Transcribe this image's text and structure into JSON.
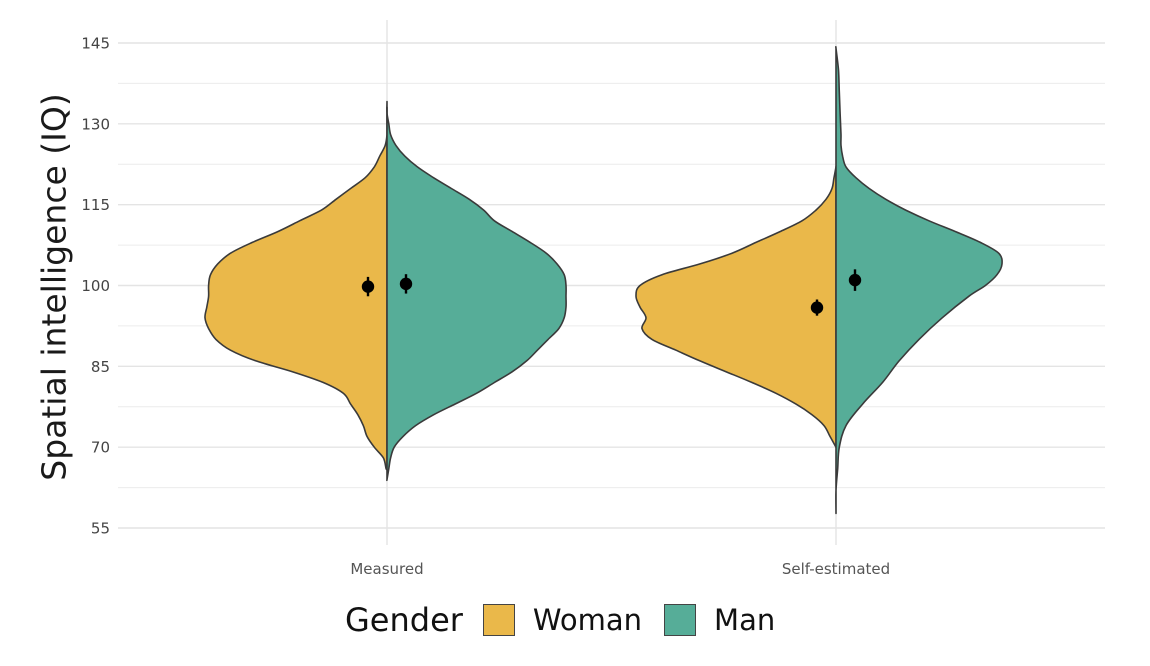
{
  "chart_data": {
    "type": "violin",
    "title": "",
    "xlabel": "",
    "ylabel": "Spatial intelligence (IQ)",
    "ylim": [
      53,
      148
    ],
    "yticks": [
      55,
      70,
      85,
      100,
      115,
      130,
      145
    ],
    "categories": [
      "Measured",
      "Self-estimated"
    ],
    "grid": true,
    "legend": {
      "title": "Gender",
      "position": "bottom"
    },
    "series": [
      {
        "name": "Woman",
        "color": "#eab84a",
        "side": "left",
        "means": [
          {
            "category": "Measured",
            "value": 99.8,
            "ci": [
              98.0,
              101.6
            ]
          },
          {
            "category": "Self-estimated",
            "value": 95.9,
            "ci": [
              94.4,
              97.4
            ]
          }
        ],
        "density": [
          {
            "category": "Measured",
            "iq": [
              66,
              68,
              70,
              72,
              74,
              76,
              78,
              80,
              82,
              84,
              86,
              88,
              90,
              92,
              94,
              96,
              98,
              100,
              102,
              104,
              106,
              108,
              110,
              112,
              114,
              116,
              118,
              120,
              122,
              124,
              126,
              128,
              130,
              132,
              133
            ],
            "density": [
              0.005,
              0.02,
              0.07,
              0.11,
              0.13,
              0.16,
              0.2,
              0.24,
              0.35,
              0.52,
              0.72,
              0.86,
              0.94,
              0.98,
              1.0,
              0.99,
              0.98,
              0.98,
              0.97,
              0.93,
              0.86,
              0.74,
              0.6,
              0.48,
              0.36,
              0.28,
              0.2,
              0.12,
              0.07,
              0.04,
              0.01,
              0.0,
              0.0,
              0.0,
              0.0
            ]
          },
          {
            "category": "Self-estimated",
            "iq": [
              70,
              72,
              74,
              76,
              78,
              80,
              82,
              84,
              86,
              88,
              90,
              92,
              94,
              96,
              98,
              100,
              102,
              104,
              106,
              108,
              110,
              112,
              114,
              116,
              118,
              120,
              122
            ],
            "density": [
              0.0,
              0.03,
              0.06,
              0.12,
              0.2,
              0.3,
              0.42,
              0.55,
              0.68,
              0.8,
              0.92,
              0.97,
              0.95,
              0.98,
              1.0,
              0.98,
              0.87,
              0.68,
              0.52,
              0.4,
              0.28,
              0.17,
              0.1,
              0.05,
              0.02,
              0.01,
              0.0
            ]
          }
        ]
      },
      {
        "name": "Man",
        "color": "#56ad98",
        "side": "right",
        "means": [
          {
            "category": "Measured",
            "value": 100.3,
            "ci": [
              98.5,
              102.1
            ]
          },
          {
            "category": "Self-estimated",
            "value": 101.0,
            "ci": [
              99.0,
              103.0
            ]
          }
        ],
        "density": [
          {
            "category": "Measured",
            "iq": [
              64,
              66,
              68,
              70,
              72,
              74,
              76,
              78,
              80,
              82,
              84,
              86,
              88,
              90,
              92,
              94,
              96,
              98,
              100,
              102,
              104,
              106,
              108,
              110,
              112,
              114,
              116,
              118,
              120,
              122,
              124,
              126,
              128,
              130,
              132,
              134
            ],
            "density": [
              0.0,
              0.01,
              0.02,
              0.04,
              0.09,
              0.16,
              0.26,
              0.38,
              0.5,
              0.6,
              0.7,
              0.78,
              0.84,
              0.9,
              0.96,
              0.99,
              1.0,
              1.0,
              1.0,
              0.99,
              0.95,
              0.89,
              0.8,
              0.7,
              0.6,
              0.54,
              0.46,
              0.36,
              0.26,
              0.17,
              0.1,
              0.05,
              0.02,
              0.01,
              0.0,
              0.0
            ]
          },
          {
            "category": "Self-estimated",
            "iq": [
              58,
              62,
              66,
              70,
              74,
              78,
              82,
              86,
              90,
              94,
              98,
              100,
              102,
              104,
              106,
              108,
              110,
              112,
              114,
              116,
              118,
              120,
              122,
              124,
              126,
              128,
              132,
              136,
              140,
              144
            ],
            "density": [
              0.0,
              0.0,
              0.01,
              0.02,
              0.06,
              0.16,
              0.28,
              0.38,
              0.5,
              0.64,
              0.8,
              0.9,
              0.97,
              1.0,
              0.98,
              0.87,
              0.72,
              0.56,
              0.42,
              0.3,
              0.2,
              0.12,
              0.06,
              0.04,
              0.03,
              0.03,
              0.025,
              0.02,
              0.015,
              0.0
            ]
          }
        ]
      }
    ]
  }
}
